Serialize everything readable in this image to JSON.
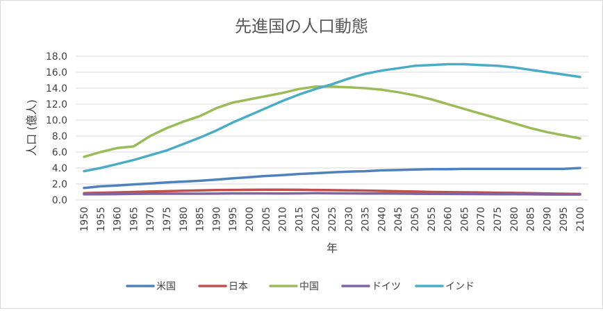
{
  "chart_data": {
    "type": "line",
    "title": "先進国の人口動態",
    "xlabel": "年",
    "ylabel": "人口 (億人)",
    "ylim": [
      0,
      18
    ],
    "y_ticks": [
      "0.0",
      "2.0",
      "4.0",
      "6.0",
      "8.0",
      "10.0",
      "12.0",
      "14.0",
      "16.0",
      "18.0"
    ],
    "x": [
      1950,
      1955,
      1960,
      1965,
      1970,
      1975,
      1980,
      1985,
      1990,
      1995,
      2000,
      2005,
      2010,
      2015,
      2020,
      2025,
      2030,
      2035,
      2040,
      2045,
      2050,
      2055,
      2060,
      2065,
      2070,
      2075,
      2080,
      2085,
      2090,
      2095,
      2100
    ],
    "grid": "horizontal",
    "legend_position": "bottom",
    "series": [
      {
        "name": "米国",
        "color": "#4f81bd",
        "values": [
          1.5,
          1.7,
          1.8,
          1.95,
          2.05,
          2.2,
          2.3,
          2.4,
          2.55,
          2.7,
          2.85,
          3.0,
          3.1,
          3.25,
          3.35,
          3.45,
          3.55,
          3.6,
          3.7,
          3.75,
          3.8,
          3.85,
          3.85,
          3.9,
          3.9,
          3.9,
          3.9,
          3.9,
          3.9,
          3.9,
          4.0
        ]
      },
      {
        "name": "日本",
        "color": "#c0504d",
        "values": [
          0.85,
          0.9,
          0.95,
          1.0,
          1.05,
          1.1,
          1.15,
          1.2,
          1.24,
          1.25,
          1.27,
          1.28,
          1.28,
          1.27,
          1.25,
          1.23,
          1.2,
          1.17,
          1.13,
          1.09,
          1.05,
          1.0,
          0.98,
          0.96,
          0.93,
          0.9,
          0.88,
          0.85,
          0.8,
          0.77,
          0.75
        ]
      },
      {
        "name": "中国",
        "color": "#9bbb59",
        "values": [
          5.4,
          6.0,
          6.5,
          6.7,
          8.0,
          9.0,
          9.8,
          10.5,
          11.5,
          12.2,
          12.6,
          13.0,
          13.4,
          13.9,
          14.2,
          14.2,
          14.1,
          14.0,
          13.8,
          13.5,
          13.1,
          12.6,
          12.0,
          11.4,
          10.8,
          10.2,
          9.6,
          9.0,
          8.5,
          8.1,
          7.7
        ]
      },
      {
        "name": "ドイツ",
        "color": "#8064a2",
        "values": [
          0.7,
          0.7,
          0.73,
          0.76,
          0.78,
          0.78,
          0.78,
          0.78,
          0.79,
          0.82,
          0.82,
          0.82,
          0.81,
          0.82,
          0.84,
          0.83,
          0.82,
          0.81,
          0.8,
          0.79,
          0.77,
          0.76,
          0.75,
          0.74,
          0.73,
          0.72,
          0.71,
          0.7,
          0.69,
          0.68,
          0.67
        ]
      },
      {
        "name": "インド",
        "color": "#4bacc6",
        "values": [
          3.6,
          4.0,
          4.5,
          5.0,
          5.6,
          6.2,
          7.0,
          7.8,
          8.7,
          9.7,
          10.6,
          11.5,
          12.4,
          13.2,
          13.9,
          14.5,
          15.2,
          15.8,
          16.2,
          16.5,
          16.8,
          16.9,
          17.0,
          17.0,
          16.9,
          16.8,
          16.6,
          16.3,
          16.0,
          15.7,
          15.4
        ]
      }
    ]
  }
}
